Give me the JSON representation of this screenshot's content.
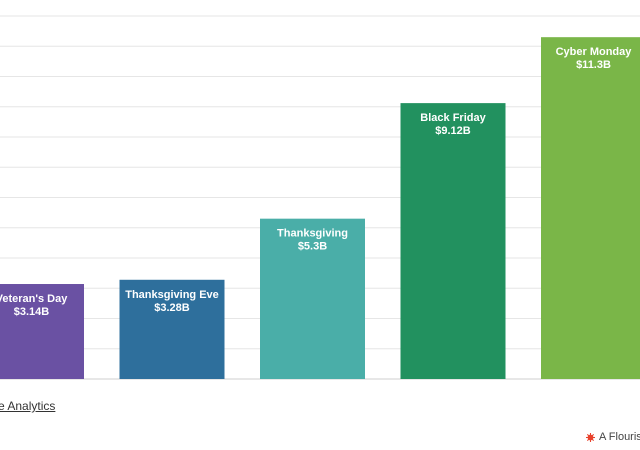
{
  "chart_data": {
    "type": "bar",
    "title": "",
    "xlabel": "",
    "ylabel": "",
    "ylim": [
      0,
      12
    ],
    "grid": true,
    "categories": [
      "Veteran's Day",
      "Thanksgiving Eve",
      "Thanksgiving",
      "Black Friday",
      "Cyber Monday"
    ],
    "values": [
      3.14,
      3.28,
      5.3,
      9.12,
      11.3
    ],
    "value_labels": [
      "$3.14B",
      "$3.28B",
      "$5.3B",
      "$9.12B",
      "$11.3B"
    ],
    "colors": [
      "#6a51a3",
      "#2e6f9c",
      "#4aaea8",
      "#22915f",
      "#7ab648"
    ]
  },
  "footer": {
    "source_text": "e Analytics",
    "credit_text": "A Flouris",
    "credit_icon": "flourish-logo-icon",
    "credit_icon_color": "#e8412c"
  }
}
